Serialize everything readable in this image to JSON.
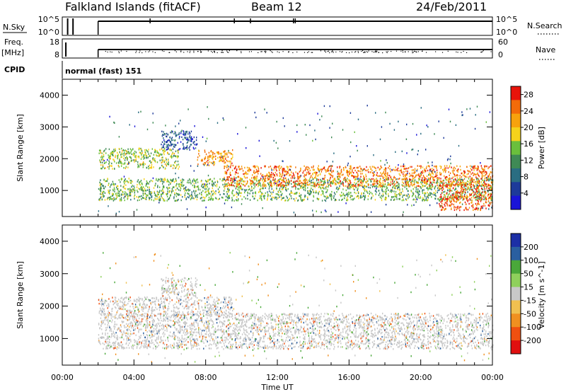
{
  "header": {
    "station": "Falkland Islands (fitACF)",
    "beam": "Beam 12",
    "date": "24/Feb/2011"
  },
  "panels": {
    "nsky": {
      "left_label": "N.Sky",
      "right_label": "N.Search",
      "left_ticks": [
        "10^5",
        "10^0"
      ],
      "right_ticks": [
        "10^5",
        "10^0"
      ]
    },
    "freq": {
      "left_label_1": "Freq.",
      "left_label_2": "[MHz]",
      "right_label": "Nave",
      "left_ticks": [
        "18",
        "8"
      ],
      "right_ticks": [
        "60",
        "0"
      ]
    },
    "cpid": {
      "label": "CPID",
      "mode_text": "normal (fast) 151"
    }
  },
  "chart_data": [
    {
      "type": "heatmap",
      "title": "",
      "xlabel": "",
      "ylabel": "Slant Range [km]",
      "x_ticks": [
        "00:00",
        "04:00",
        "08:00",
        "12:00",
        "16:00",
        "20:00",
        "00:00"
      ],
      "xlim": [
        0,
        24
      ],
      "ylim": [
        180,
        4500
      ],
      "y_ticks": [
        1000,
        2000,
        3000,
        4000
      ],
      "colorbar": {
        "label": "Power [dB]",
        "ticks": [
          4,
          8,
          12,
          16,
          20,
          24,
          28
        ],
        "range": [
          0,
          30
        ],
        "colors": [
          "#1a14d8",
          "#1d3a9a",
          "#2a6d82",
          "#3f8a55",
          "#6abf3c",
          "#f5d21b",
          "#f7a20d",
          "#f26b09",
          "#e8140b"
        ]
      },
      "bands": [
        {
          "t": [
            2.0,
            24.0
          ],
          "range_km": [
            700,
            1400
          ],
          "level": 14
        },
        {
          "t": [
            2.0,
            6.5
          ],
          "range_km": [
            1700,
            2350
          ],
          "level": 16
        },
        {
          "t": [
            7.5,
            9.5
          ],
          "range_km": [
            1800,
            2300
          ],
          "level": 22
        },
        {
          "t": [
            9.0,
            24.0
          ],
          "range_km": [
            1150,
            1800
          ],
          "level": 24
        },
        {
          "t": [
            5.5,
            7.5
          ],
          "range_km": [
            2300,
            2900
          ],
          "level": 6
        },
        {
          "t": [
            21.0,
            24.0
          ],
          "range_km": [
            400,
            1200
          ],
          "level": 26
        }
      ]
    },
    {
      "type": "heatmap",
      "title": "",
      "xlabel": "Time UT",
      "ylabel": "Slant Range [km]",
      "x_ticks": [
        "00:00",
        "04:00",
        "08:00",
        "12:00",
        "16:00",
        "20:00",
        "00:00"
      ],
      "xlim": [
        0,
        24
      ],
      "ylim": [
        180,
        4500
      ],
      "y_ticks": [
        1000,
        2000,
        3000,
        4000
      ],
      "colorbar": {
        "label": "Velocity [m s^-1]",
        "ticks": [
          "200",
          "100",
          "50",
          "15",
          "-15",
          "-50",
          "-100",
          "-200"
        ],
        "colors": [
          "#1c2fa6",
          "#2a5fa0",
          "#4aa83a",
          "#8fd05c",
          "#c8c8c8",
          "#f0c050",
          "#f09020",
          "#f05010",
          "#e01010"
        ]
      },
      "bands": [
        {
          "t": [
            2.0,
            24.0
          ],
          "range_km": [
            700,
            1800
          ],
          "velocity": 0
        },
        {
          "t": [
            2.0,
            9.5
          ],
          "range_km": [
            1700,
            2300
          ],
          "velocity": 0
        },
        {
          "t": [
            5.5,
            7.5
          ],
          "range_km": [
            2300,
            2900
          ],
          "velocity": 0
        }
      ]
    }
  ]
}
